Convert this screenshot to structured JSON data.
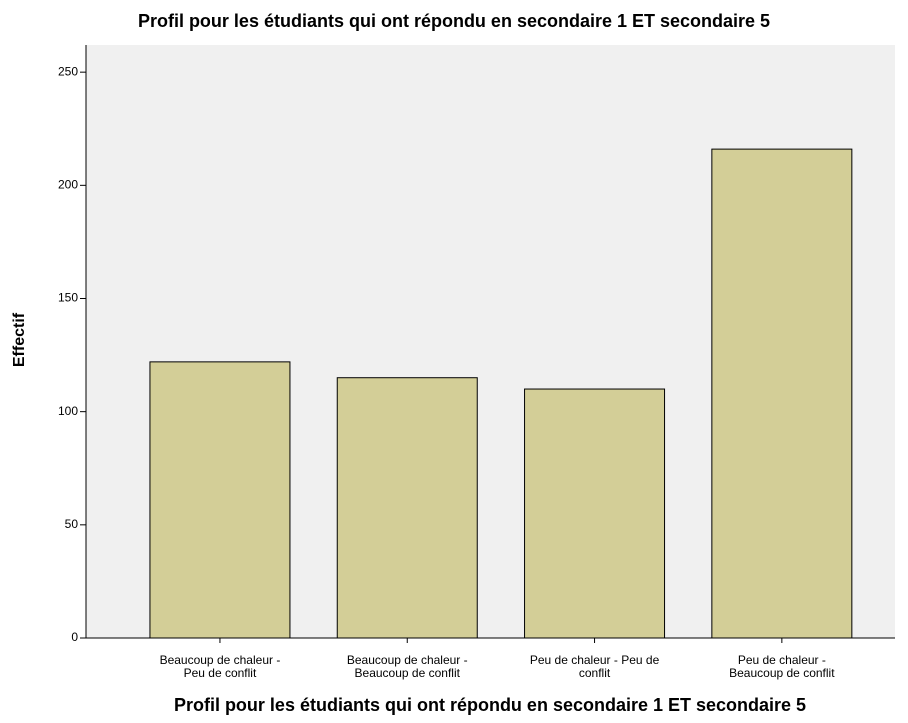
{
  "chart_data": {
    "type": "bar",
    "title": "Profil pour les étudiants qui ont répondu en secondaire 1 ET secondaire 5",
    "xlabel": "Profil pour les étudiants qui ont répondu en secondaire 1 ET secondaire 5",
    "ylabel": "Effectif",
    "categories": [
      "Beaucoup de chaleur - Peu de conflit",
      "Beaucoup de chaleur - Beaucoup de conflit",
      "Peu de chaleur - Peu de conflit",
      "Peu de chaleur - Beaucoup de conflit"
    ],
    "values": [
      122,
      115,
      110,
      216
    ],
    "color": "#d3ce97",
    "ylim": [
      0,
      262
    ],
    "yticks": [
      0,
      50,
      100,
      150,
      200,
      250
    ]
  }
}
